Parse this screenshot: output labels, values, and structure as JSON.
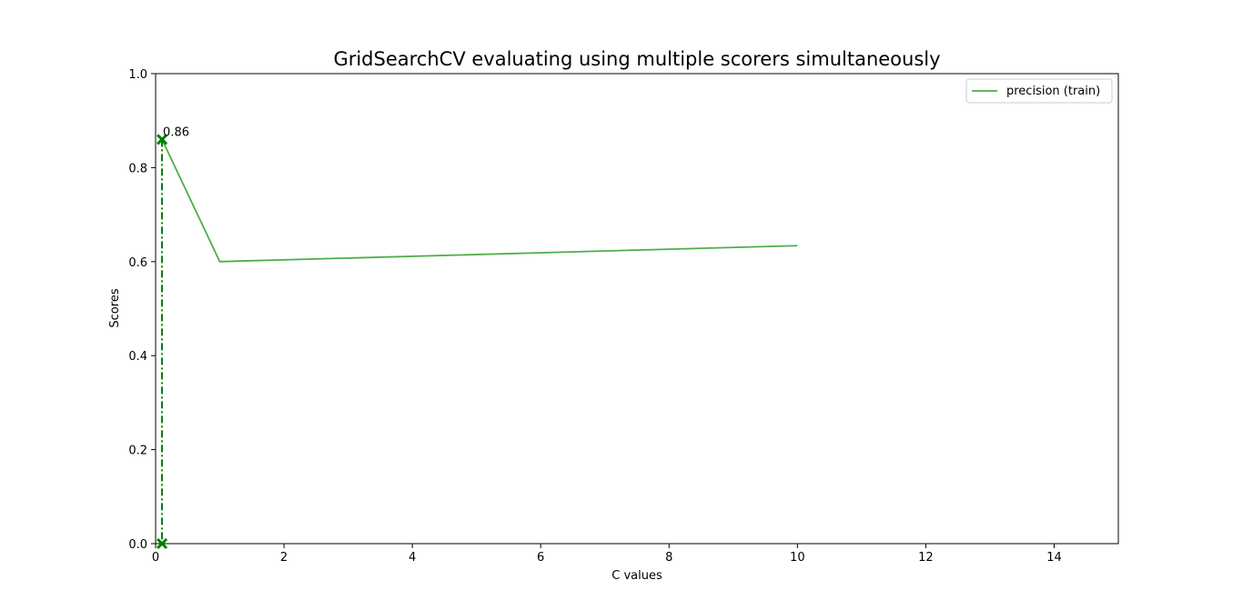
{
  "chart_data": {
    "type": "line",
    "title": "GridSearchCV evaluating using multiple scorers simultaneously",
    "xlabel": "C values",
    "ylabel": "Scores",
    "xlim": [
      0,
      15
    ],
    "ylim": [
      0,
      1
    ],
    "x_ticks": [
      0,
      2,
      4,
      6,
      8,
      10,
      12,
      14
    ],
    "y_ticks": [
      0.0,
      0.2,
      0.4,
      0.6,
      0.8,
      1.0
    ],
    "x_tick_labels": [
      "0",
      "2",
      "4",
      "6",
      "8",
      "10",
      "12",
      "14"
    ],
    "y_tick_labels": [
      "0.0",
      "0.2",
      "0.4",
      "0.6",
      "0.8",
      "1.0"
    ],
    "grid": false,
    "legend_position": "top-right",
    "series": [
      {
        "name": "precision (train)",
        "color": "#4daf4a",
        "x": [
          0.1,
          1,
          10
        ],
        "y": [
          0.86,
          0.6,
          0.634
        ]
      }
    ],
    "best_marker": {
      "x": 0.1,
      "y": 0.86,
      "label": "0.86",
      "color": "#008000"
    }
  }
}
